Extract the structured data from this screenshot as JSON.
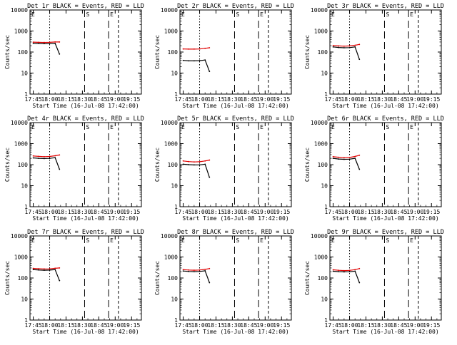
{
  "chart_data": [
    {
      "type": "line",
      "title": "Det 1r BLACK = Events, RED = LLD",
      "xlabel": "Start Time (16-Jul-08 17:42:00)",
      "ylabel": "Counts/sec",
      "xticks": [
        "17:45",
        "18:00",
        "18:15",
        "18:30",
        "18:45",
        "19:00",
        "19:15"
      ],
      "yticks": [
        "1",
        "10",
        "100",
        "1000",
        "10000"
      ],
      "ylim": [
        1,
        10000
      ],
      "yscale": "log",
      "markers": [
        "E",
        "S",
        "E"
      ],
      "series": [
        {
          "name": "BLACK",
          "color": "#000000",
          "x": [
            "17:45",
            "17:50",
            "17:55",
            "18:00",
            "18:05",
            "18:09"
          ],
          "values": [
            260,
            255,
            250,
            250,
            258,
            80
          ]
        },
        {
          "name": "RED",
          "color": "#e00000",
          "x": [
            "17:45",
            "17:50",
            "17:55",
            "18:00",
            "18:05",
            "18:09"
          ],
          "values": [
            295,
            290,
            285,
            290,
            300,
            300
          ]
        }
      ]
    },
    {
      "type": "line",
      "title": "Det 2r BLACK = Events, RED = LLD",
      "xlabel": "Start Time (16-Jul-08 17:42:00)",
      "ylabel": "Counts/sec",
      "xticks": [
        "17:45",
        "18:00",
        "18:15",
        "18:30",
        "18:45",
        "19:00",
        "19:15"
      ],
      "yticks": [
        "1",
        "10",
        "100",
        "1000",
        "10000"
      ],
      "ylim": [
        1,
        10000
      ],
      "yscale": "log",
      "markers": [
        "E",
        "S",
        "E"
      ],
      "series": [
        {
          "name": "BLACK",
          "color": "#000000",
          "x": [
            "17:45",
            "17:50",
            "17:55",
            "18:00",
            "18:05",
            "18:09"
          ],
          "values": [
            40,
            38,
            38,
            39,
            42,
            12
          ]
        },
        {
          "name": "RED",
          "color": "#e00000",
          "x": [
            "17:45",
            "17:50",
            "17:55",
            "18:00",
            "18:05",
            "18:09"
          ],
          "values": [
            140,
            138,
            138,
            140,
            150,
            160
          ]
        }
      ]
    },
    {
      "type": "line",
      "title": "Det 3r BLACK = Events, RED = LLD",
      "xlabel": "Start Time (16-Jul-08 17:42:00)",
      "ylabel": "Counts/sec",
      "xticks": [
        "17:45",
        "18:00",
        "18:15",
        "18:30",
        "18:45",
        "19:00",
        "19:15"
      ],
      "yticks": [
        "1",
        "10",
        "100",
        "1000",
        "10000"
      ],
      "ylim": [
        1,
        10000
      ],
      "yscale": "log",
      "markers": [
        "E",
        "S",
        "E"
      ],
      "series": [
        {
          "name": "BLACK",
          "color": "#000000",
          "x": [
            "17:45",
            "17:50",
            "17:55",
            "18:00",
            "18:05",
            "18:09"
          ],
          "values": [
            175,
            165,
            160,
            162,
            175,
            45
          ]
        },
        {
          "name": "RED",
          "color": "#e00000",
          "x": [
            "17:45",
            "17:50",
            "17:55",
            "18:00",
            "18:05",
            "18:09"
          ],
          "values": [
            205,
            195,
            190,
            195,
            210,
            230
          ]
        }
      ]
    },
    {
      "type": "line",
      "title": "Det 4r BLACK = Events, RED = LLD",
      "xlabel": "Start Time (16-Jul-08 17:42:00)",
      "ylabel": "Counts/sec",
      "xticks": [
        "17:45",
        "18:00",
        "18:15",
        "18:30",
        "18:45",
        "19:00",
        "19:15"
      ],
      "yticks": [
        "1",
        "10",
        "100",
        "1000",
        "10000"
      ],
      "ylim": [
        1,
        10000
      ],
      "yscale": "log",
      "markers": [
        "E",
        "S",
        "E"
      ],
      "series": [
        {
          "name": "BLACK",
          "color": "#000000",
          "x": [
            "17:45",
            "17:50",
            "17:55",
            "18:00",
            "18:05",
            "18:09"
          ],
          "values": [
            210,
            200,
            195,
            198,
            215,
            60
          ]
        },
        {
          "name": "RED",
          "color": "#e00000",
          "x": [
            "17:45",
            "17:50",
            "17:55",
            "18:00",
            "18:05",
            "18:09"
          ],
          "values": [
            260,
            248,
            240,
            245,
            265,
            290
          ]
        }
      ]
    },
    {
      "type": "line",
      "title": "Det 5r BLACK = Events, RED = LLD",
      "xlabel": "Start Time (16-Jul-08 17:42:00)",
      "ylabel": "Counts/sec",
      "xticks": [
        "17:45",
        "18:00",
        "18:15",
        "18:30",
        "18:45",
        "19:00",
        "19:15"
      ],
      "yticks": [
        "1",
        "10",
        "100",
        "1000",
        "10000"
      ],
      "ylim": [
        1,
        10000
      ],
      "yscale": "log",
      "markers": [
        "E",
        "S",
        "E"
      ],
      "series": [
        {
          "name": "BLACK",
          "color": "#000000",
          "x": [
            "17:45",
            "17:50",
            "17:55",
            "18:00",
            "18:05",
            "18:09"
          ],
          "values": [
            105,
            100,
            97,
            98,
            105,
            25
          ]
        },
        {
          "name": "RED",
          "color": "#e00000",
          "x": [
            "17:45",
            "17:50",
            "17:55",
            "18:00",
            "18:05",
            "18:09"
          ],
          "values": [
            150,
            140,
            135,
            138,
            150,
            165
          ]
        }
      ]
    },
    {
      "type": "line",
      "title": "Det 6r BLACK = Events, RED = LLD",
      "xlabel": "Start Time (16-Jul-08 17:42:00)",
      "ylabel": "Counts/sec",
      "xticks": [
        "17:45",
        "18:00",
        "18:15",
        "18:30",
        "18:45",
        "19:00",
        "19:15"
      ],
      "yticks": [
        "1",
        "10",
        "100",
        "1000",
        "10000"
      ],
      "ylim": [
        1,
        10000
      ],
      "yscale": "log",
      "markers": [
        "E",
        "S",
        "E"
      ],
      "series": [
        {
          "name": "BLACK",
          "color": "#000000",
          "x": [
            "17:45",
            "17:50",
            "17:55",
            "18:00",
            "18:05",
            "18:09"
          ],
          "values": [
            200,
            185,
            180,
            183,
            200,
            60
          ]
        },
        {
          "name": "RED",
          "color": "#e00000",
          "x": [
            "17:45",
            "17:50",
            "17:55",
            "18:00",
            "18:05",
            "18:09"
          ],
          "values": [
            240,
            225,
            215,
            220,
            245,
            280
          ]
        }
      ]
    },
    {
      "type": "line",
      "title": "Det 7r BLACK = Events, RED = LLD",
      "xlabel": "Start Time (16-Jul-08 17:42:00)",
      "ylabel": "Counts/sec",
      "xticks": [
        "17:45",
        "18:00",
        "18:15",
        "18:30",
        "18:45",
        "19:00",
        "19:15"
      ],
      "yticks": [
        "1",
        "10",
        "100",
        "1000",
        "10000"
      ],
      "ylim": [
        1,
        10000
      ],
      "yscale": "log",
      "markers": [
        "E",
        "S",
        "E"
      ],
      "series": [
        {
          "name": "BLACK",
          "color": "#000000",
          "x": [
            "17:45",
            "17:50",
            "17:55",
            "18:00",
            "18:05",
            "18:09"
          ],
          "values": [
            250,
            240,
            235,
            238,
            250,
            75
          ]
        },
        {
          "name": "RED",
          "color": "#e00000",
          "x": [
            "17:45",
            "17:50",
            "17:55",
            "18:00",
            "18:05",
            "18:09"
          ],
          "values": [
            285,
            275,
            270,
            272,
            290,
            300
          ]
        }
      ]
    },
    {
      "type": "line",
      "title": "Det 8r BLACK = Events, RED = LLD",
      "xlabel": "Start Time (16-Jul-08 17:42:00)",
      "ylabel": "Counts/sec",
      "xticks": [
        "17:45",
        "18:00",
        "18:15",
        "18:30",
        "18:45",
        "19:00",
        "19:15"
      ],
      "yticks": [
        "1",
        "10",
        "100",
        "1000",
        "10000"
      ],
      "ylim": [
        1,
        10000
      ],
      "yscale": "log",
      "markers": [
        "E",
        "S",
        "E"
      ],
      "series": [
        {
          "name": "BLACK",
          "color": "#000000",
          "x": [
            "17:45",
            "17:50",
            "17:55",
            "18:00",
            "18:05",
            "18:09"
          ],
          "values": [
            215,
            205,
            200,
            205,
            220,
            60
          ]
        },
        {
          "name": "RED",
          "color": "#e00000",
          "x": [
            "17:45",
            "17:50",
            "17:55",
            "18:00",
            "18:05",
            "18:09"
          ],
          "values": [
            250,
            240,
            235,
            240,
            258,
            280
          ]
        }
      ]
    },
    {
      "type": "line",
      "title": "Det 9r BLACK = Events, RED = LLD",
      "xlabel": "Start Time (16-Jul-08 17:42:00)",
      "ylabel": "Counts/sec",
      "xticks": [
        "17:45",
        "18:00",
        "18:15",
        "18:30",
        "18:45",
        "19:00",
        "19:15"
      ],
      "yticks": [
        "1",
        "10",
        "100",
        "1000",
        "10000"
      ],
      "ylim": [
        1,
        10000
      ],
      "yscale": "log",
      "markers": [
        "E",
        "S",
        "E"
      ],
      "series": [
        {
          "name": "BLACK",
          "color": "#000000",
          "x": [
            "17:45",
            "17:50",
            "17:55",
            "18:00",
            "18:05",
            "18:09"
          ],
          "values": [
            210,
            200,
            195,
            198,
            212,
            60
          ]
        },
        {
          "name": "RED",
          "color": "#e00000",
          "x": [
            "17:45",
            "17:50",
            "17:55",
            "18:00",
            "18:05",
            "18:09"
          ],
          "values": [
            245,
            232,
            225,
            230,
            250,
            280
          ]
        }
      ]
    }
  ]
}
